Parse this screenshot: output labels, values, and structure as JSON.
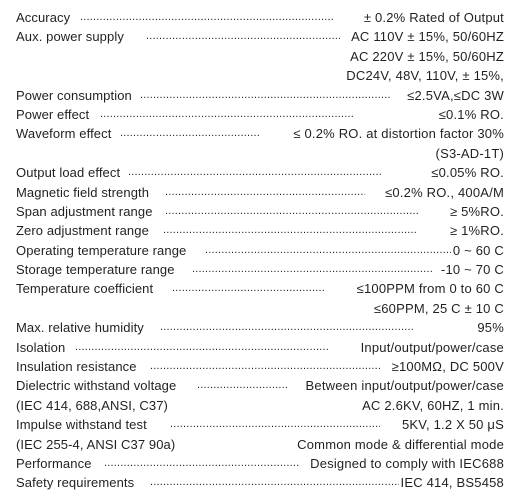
{
  "specs": [
    {
      "label": "Accuracy",
      "value": "± 0.2% Rated of Output"
    },
    {
      "label": "Aux. power supply",
      "value": "AC 110V ± 15%, 50/60HZ"
    },
    {
      "label": "",
      "value": "AC 220V ± 15%, 50/60HZ"
    },
    {
      "label": "",
      "value": "DC24V, 48V, 110V, ± 15%,"
    },
    {
      "label": "Power consumption",
      "value": "≤2.5VA,≤DC 3W"
    },
    {
      "label": "Power effect",
      "value": "≤0.1% RO."
    },
    {
      "label": "Waveform effect",
      "value": "≤ 0.2% RO. at distortion factor 30%"
    },
    {
      "label": "",
      "value": "(S3-AD-1T)"
    },
    {
      "label": "Output load effect",
      "value": "≤0.05% RO."
    },
    {
      "label": "Magnetic field strength",
      "value": "≤0.2% RO., 400A/M"
    },
    {
      "label": "Span adjustment range",
      "value": "≥ 5%RO."
    },
    {
      "label": "Zero adjustment range",
      "value": "≥ 1%RO."
    },
    {
      "label": "Operating temperature range",
      "value": "0 ~ 60 C"
    },
    {
      "label": "Storage temperature range",
      "value": "-10 ~ 70 C"
    },
    {
      "label": "Temperature coefficient",
      "value": "≤100PPM from 0 to 60 C"
    },
    {
      "label": "",
      "value": "≤60PPM, 25 C ± 10 C"
    },
    {
      "label": "Max. relative humidity",
      "value": "95%"
    },
    {
      "label": "Isolation",
      "value": "Input/output/power/case"
    },
    {
      "label": "Insulation resistance",
      "value": "≥100MΩ, DC 500V"
    },
    {
      "label": "Dielectric withstand voltage",
      "value": "Between input/output/power/case"
    },
    {
      "label": "(IEC 414, 688,ANSI, C37)",
      "value": "AC 2.6KV, 60HZ, 1 min."
    },
    {
      "label": "Impulse withstand test",
      "value": "5KV, 1.2 X 50 μS"
    },
    {
      "label": "(IEC 255-4, ANSI C37 90a)",
      "value": "Common mode  & differential mode"
    },
    {
      "label": "Performance",
      "value": "Designed to comply with IEC688"
    },
    {
      "label": "Safety requirements",
      "value": "IEC 414, BS5458"
    }
  ]
}
